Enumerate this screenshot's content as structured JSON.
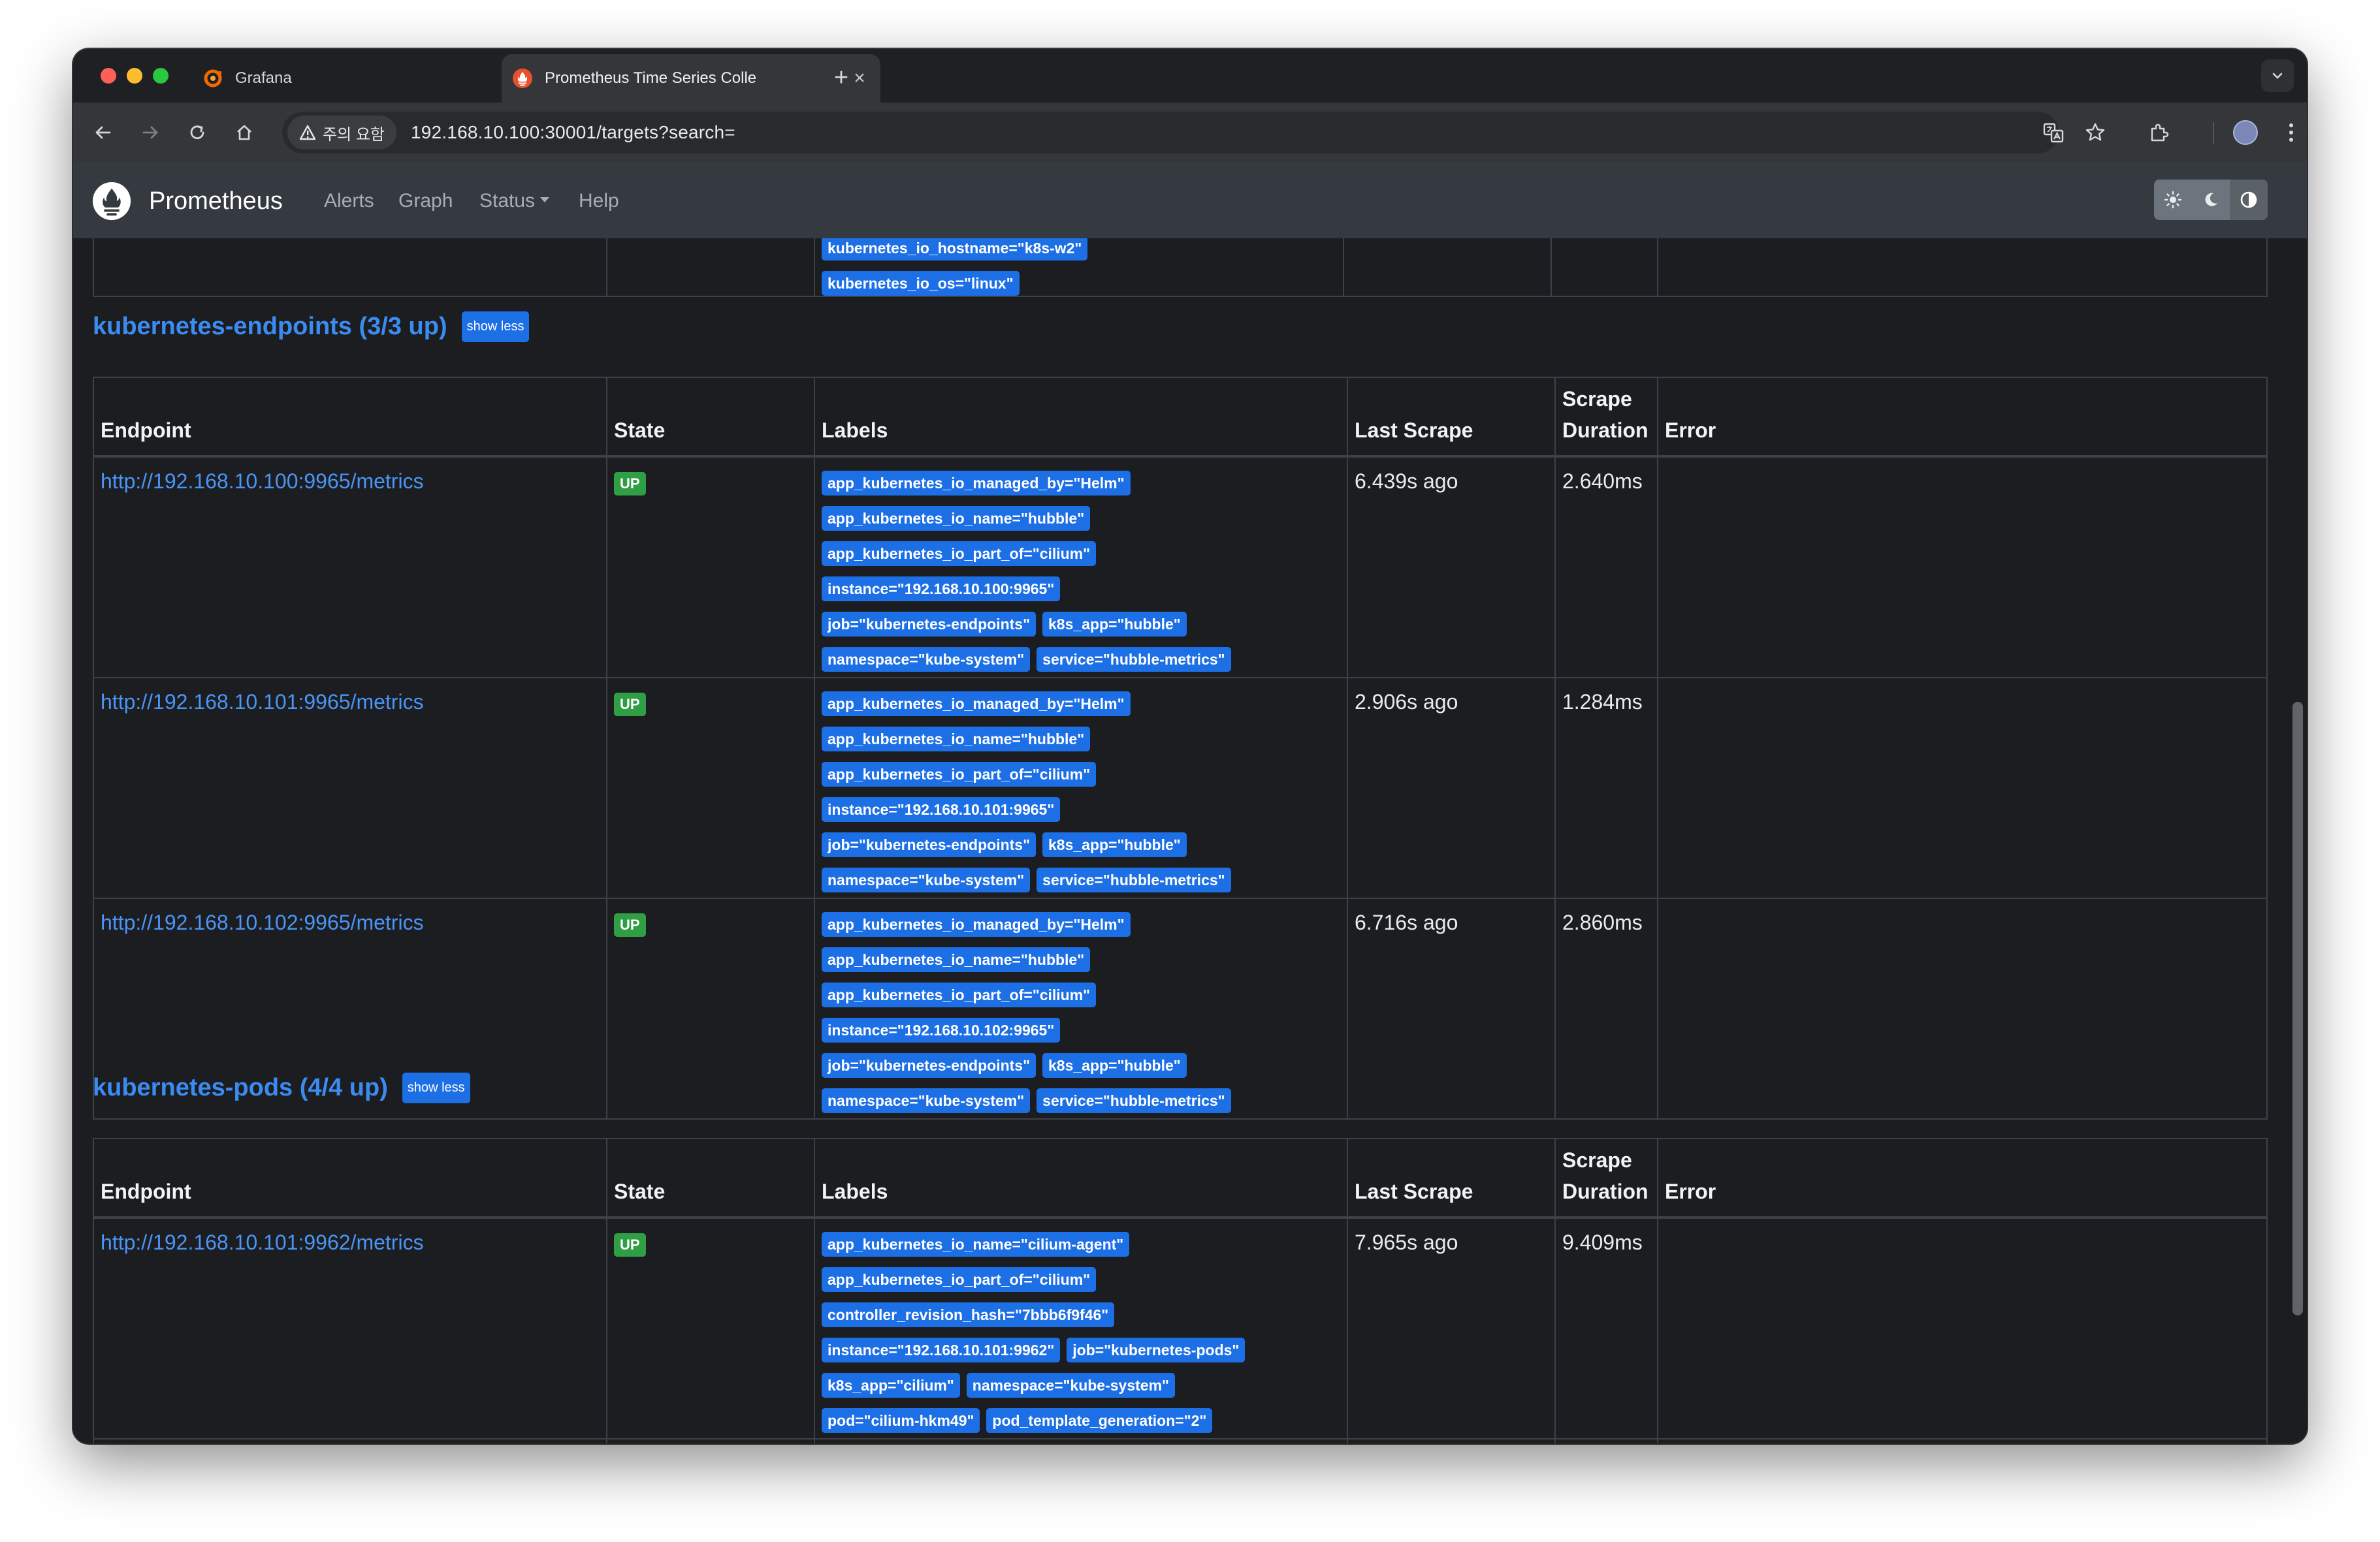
{
  "browser": {
    "tabs": [
      {
        "title": "Grafana",
        "icon": "grafana-icon"
      },
      {
        "title": "Prometheus Time Series Colle",
        "icon": "prometheus-icon"
      }
    ],
    "security_warning": "주의 요함",
    "url": "192.168.10.100:30001/targets?search="
  },
  "navbar": {
    "brand": "Prometheus",
    "links": [
      "Alerts",
      "Graph",
      "Status",
      "Help"
    ]
  },
  "prev_pool": {
    "labels": [
      "kubernetes_io_hostname=\"k8s-w2\"",
      "kubernetes_io_os=\"linux\""
    ]
  },
  "columns": [
    "Endpoint",
    "State",
    "Labels",
    "Last Scrape",
    "Scrape Duration",
    "Error"
  ],
  "pools": [
    {
      "title": "kubernetes-endpoints (3/3 up)",
      "toggle": "show less",
      "targets": [
        {
          "endpoint": "http://192.168.10.100:9965/metrics",
          "state": "UP",
          "labels": [
            "app_kubernetes_io_managed_by=\"Helm\"",
            "app_kubernetes_io_name=\"hubble\"",
            "app_kubernetes_io_part_of=\"cilium\"",
            "instance=\"192.168.10.100:9965\"",
            "job=\"kubernetes-endpoints\"",
            "k8s_app=\"hubble\"",
            "namespace=\"kube-system\"",
            "service=\"hubble-metrics\""
          ],
          "last_scrape": "6.439s ago",
          "duration": "2.640ms",
          "error": ""
        },
        {
          "endpoint": "http://192.168.10.101:9965/metrics",
          "state": "UP",
          "labels": [
            "app_kubernetes_io_managed_by=\"Helm\"",
            "app_kubernetes_io_name=\"hubble\"",
            "app_kubernetes_io_part_of=\"cilium\"",
            "instance=\"192.168.10.101:9965\"",
            "job=\"kubernetes-endpoints\"",
            "k8s_app=\"hubble\"",
            "namespace=\"kube-system\"",
            "service=\"hubble-metrics\""
          ],
          "last_scrape": "2.906s ago",
          "duration": "1.284ms",
          "error": ""
        },
        {
          "endpoint": "http://192.168.10.102:9965/metrics",
          "state": "UP",
          "labels": [
            "app_kubernetes_io_managed_by=\"Helm\"",
            "app_kubernetes_io_name=\"hubble\"",
            "app_kubernetes_io_part_of=\"cilium\"",
            "instance=\"192.168.10.102:9965\"",
            "job=\"kubernetes-endpoints\"",
            "k8s_app=\"hubble\"",
            "namespace=\"kube-system\"",
            "service=\"hubble-metrics\""
          ],
          "last_scrape": "6.716s ago",
          "duration": "2.860ms",
          "error": ""
        }
      ]
    },
    {
      "title": "kubernetes-pods (4/4 up)",
      "toggle": "show less",
      "targets": [
        {
          "endpoint": "http://192.168.10.101:9962/metrics",
          "state": "UP",
          "labels": [
            "app_kubernetes_io_name=\"cilium-agent\"",
            "app_kubernetes_io_part_of=\"cilium\"",
            "controller_revision_hash=\"7bbb6f9f46\"",
            "instance=\"192.168.10.101:9962\"",
            "job=\"kubernetes-pods\"",
            "k8s_app=\"cilium\"",
            "namespace=\"kube-system\"",
            "pod=\"cilium-hkm49\"",
            "pod_template_generation=\"2\""
          ],
          "last_scrape": "7.965s ago",
          "duration": "9.409ms",
          "error": ""
        }
      ]
    }
  ],
  "colors": {
    "accent": "#1d6fe6",
    "link": "#4a95f5",
    "up": "#2f9e44",
    "navbar": "#343a40",
    "page_bg": "#1b1d21"
  }
}
